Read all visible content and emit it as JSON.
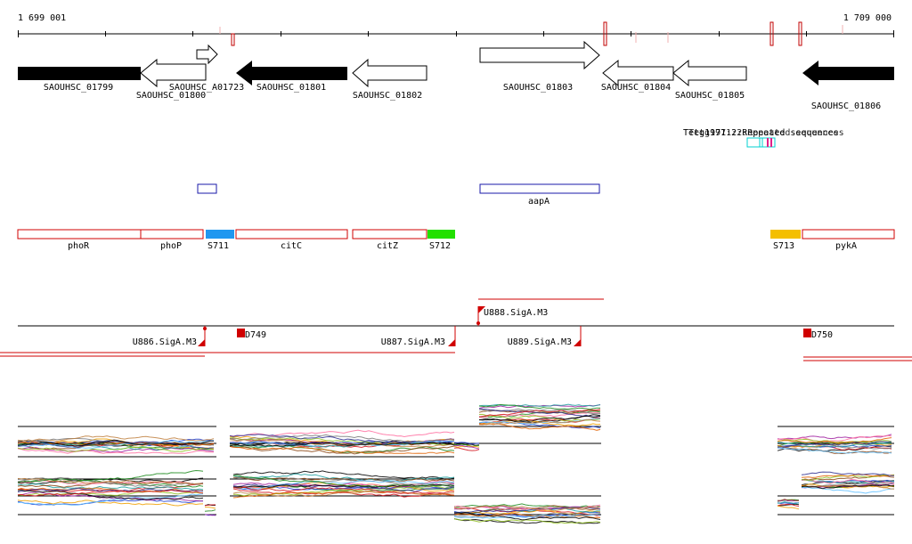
{
  "coords": {
    "start_label": "1 699 001",
    "end_label": "1 709 000"
  },
  "genes": [
    {
      "id": "SAOUHSC_01799",
      "strand": "+",
      "style": "filled"
    },
    {
      "id": "SAOUHSC_01800",
      "strand": "-",
      "style": "open"
    },
    {
      "id": "SAOUHSC_A01723",
      "strand": "+",
      "style": "open"
    },
    {
      "id": "SAOUHSC_01801",
      "strand": "-",
      "style": "filled"
    },
    {
      "id": "SAOUHSC_01802",
      "strand": "-",
      "style": "open"
    },
    {
      "id": "SAOUHSC_01803",
      "strand": "+",
      "style": "open"
    },
    {
      "id": "SAOUHSC_01804",
      "strand": "-",
      "style": "open"
    },
    {
      "id": "SAOUHSC_01805",
      "strand": "-",
      "style": "open"
    },
    {
      "id": "SAOUHSC_01806",
      "strand": "-",
      "style": "filled"
    }
  ],
  "repeats": {
    "label": "Tetg1971:2:Repeated sequences"
  },
  "blue_features": [
    {
      "label": ""
    },
    {
      "label": "aapA"
    }
  ],
  "annotations": [
    {
      "label": "phoR",
      "type": "gene"
    },
    {
      "label": "phoP",
      "type": "gene"
    },
    {
      "label": "S711",
      "type": "sRNA",
      "color": "#1f97f0"
    },
    {
      "label": "citC",
      "type": "gene"
    },
    {
      "label": "citZ",
      "type": "gene"
    },
    {
      "label": "S712",
      "type": "sRNA",
      "color": "#22e000"
    },
    {
      "label": "S713",
      "type": "sRNA",
      "color": "#f4bf00"
    },
    {
      "label": "pykA",
      "type": "gene"
    }
  ],
  "signals": [
    {
      "label": "U888.SigA.M3",
      "strand": "+"
    },
    {
      "label": "U886.SigA.M3",
      "strand": "-"
    },
    {
      "label": "D749",
      "strand": "-"
    },
    {
      "label": "U887.SigA.M3",
      "strand": "-"
    },
    {
      "label": "U889.SigA.M3",
      "strand": "-"
    },
    {
      "label": "D750",
      "strand": "-"
    }
  ],
  "colors": {
    "gene_outline": "#d00000",
    "repeat_cyan": "#00d0d0",
    "repeat_magenta": "#e0208a",
    "feature_blue": "#1a1aa8"
  }
}
